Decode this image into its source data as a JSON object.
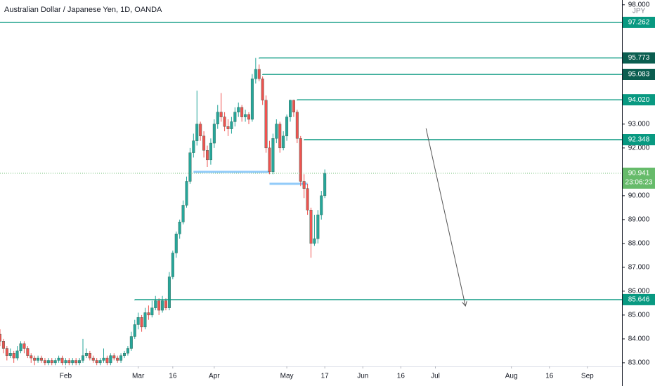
{
  "chart_data": {
    "type": "candlestick",
    "title": "Australian Dollar / Japanese Yen, 1D, OANDA",
    "currency": "JPY",
    "up_color": "#26a69a",
    "down_color": "#ef5350",
    "level_color": "#089981",
    "zone_color": "#90caf9",
    "grid": false,
    "xlim": [
      -19,
      161
    ],
    "ylim": [
      82.85,
      98.2
    ],
    "yticks": [
      {
        "value": 98,
        "label": "98.000"
      },
      {
        "value": 93,
        "label": "93.000"
      },
      {
        "value": 92,
        "label": "92.000"
      },
      {
        "value": 90,
        "label": "90.000"
      },
      {
        "value": 89,
        "label": "89.000"
      },
      {
        "value": 88,
        "label": "88.000"
      },
      {
        "value": 87,
        "label": "87.000"
      },
      {
        "value": 86,
        "label": "86.000"
      },
      {
        "value": 85,
        "label": "85.000"
      },
      {
        "value": 84,
        "label": "84.000"
      },
      {
        "value": 83,
        "label": "83.000"
      }
    ],
    "xticks": [
      {
        "value": 0,
        "label": "Feb"
      },
      {
        "value": 21,
        "label": "Mar"
      },
      {
        "value": 31,
        "label": "16"
      },
      {
        "value": 43,
        "label": "Apr"
      },
      {
        "value": 64,
        "label": "May"
      },
      {
        "value": 75,
        "label": "17"
      },
      {
        "value": 86,
        "label": "Jun"
      },
      {
        "value": 97,
        "label": "16"
      },
      {
        "value": 107,
        "label": "Jul"
      },
      {
        "value": 129,
        "label": "Aug"
      },
      {
        "value": 140,
        "label": "16"
      },
      {
        "value": 151,
        "label": "Sep"
      }
    ],
    "x": [
      -19,
      -18,
      -17,
      -16,
      -15,
      -14,
      -13,
      -12,
      -11,
      -10,
      -9,
      -8,
      -7,
      -6,
      -5,
      -4,
      -3,
      -2,
      -1,
      0,
      1,
      2,
      3,
      4,
      5,
      6,
      7,
      8,
      9,
      10,
      11,
      12,
      13,
      14,
      15,
      16,
      17,
      18,
      19,
      20,
      21,
      22,
      23,
      24,
      25,
      26,
      27,
      28,
      29,
      30,
      31,
      32,
      33,
      34,
      35,
      36,
      37,
      38,
      39,
      40,
      41,
      42,
      43,
      44,
      45,
      46,
      47,
      48,
      49,
      50,
      51,
      52,
      53,
      54,
      55,
      56,
      57,
      58,
      59,
      60,
      61,
      62,
      63,
      64,
      65,
      66,
      67,
      68,
      69,
      70,
      71,
      72,
      73,
      74,
      75
    ],
    "ohlc": [
      [
        84.2,
        84.4,
        83.7,
        83.9
      ],
      [
        83.9,
        84.0,
        83.4,
        83.6
      ],
      [
        83.6,
        83.7,
        83.1,
        83.3
      ],
      [
        83.3,
        83.6,
        83.2,
        83.4
      ],
      [
        83.4,
        83.5,
        83.0,
        83.2
      ],
      [
        83.2,
        83.7,
        83.1,
        83.5
      ],
      [
        83.5,
        83.9,
        83.4,
        83.8
      ],
      [
        83.8,
        83.9,
        83.4,
        83.6
      ],
      [
        83.6,
        83.7,
        83.2,
        83.3
      ],
      [
        83.3,
        83.4,
        83.0,
        83.2
      ],
      [
        83.2,
        83.3,
        82.9,
        83.1
      ],
      [
        83.1,
        83.3,
        83.0,
        83.2
      ],
      [
        83.2,
        83.3,
        83.0,
        83.1
      ],
      [
        83.1,
        83.2,
        82.9,
        83.0
      ],
      [
        83.0,
        83.2,
        82.9,
        83.1
      ],
      [
        83.1,
        83.2,
        82.9,
        83.0
      ],
      [
        83.0,
        83.2,
        82.9,
        83.1
      ],
      [
        83.1,
        83.3,
        83.0,
        83.2
      ],
      [
        83.2,
        83.3,
        82.9,
        83.0
      ],
      [
        83.0,
        83.2,
        82.9,
        83.1
      ],
      [
        83.1,
        83.2,
        82.9,
        83.0
      ],
      [
        83.0,
        83.2,
        82.9,
        83.1
      ],
      [
        83.1,
        83.2,
        82.9,
        83.0
      ],
      [
        83.0,
        83.2,
        82.9,
        83.1
      ],
      [
        83.1,
        84.0,
        83.0,
        83.3
      ],
      [
        83.3,
        83.6,
        83.2,
        83.4
      ],
      [
        83.4,
        83.5,
        83.1,
        83.2
      ],
      [
        83.2,
        83.3,
        83.0,
        83.1
      ],
      [
        83.1,
        83.2,
        82.9,
        83.0
      ],
      [
        83.0,
        83.2,
        82.9,
        83.1
      ],
      [
        83.1,
        83.6,
        83.0,
        83.2
      ],
      [
        83.2,
        83.3,
        82.9,
        83.0
      ],
      [
        83.0,
        83.4,
        82.9,
        83.3
      ],
      [
        83.3,
        83.4,
        83.1,
        83.2
      ],
      [
        83.2,
        83.3,
        83.0,
        83.1
      ],
      [
        83.1,
        83.4,
        83.0,
        83.3
      ],
      [
        83.3,
        83.5,
        83.2,
        83.4
      ],
      [
        83.4,
        83.7,
        83.3,
        83.6
      ],
      [
        83.6,
        84.3,
        83.5,
        84.1
      ],
      [
        84.1,
        84.8,
        84.0,
        84.6
      ],
      [
        84.6,
        85.1,
        84.4,
        84.9
      ],
      [
        84.9,
        85.0,
        84.3,
        84.5
      ],
      [
        84.5,
        85.3,
        84.4,
        85.1
      ],
      [
        85.1,
        85.4,
        84.8,
        85.0
      ],
      [
        85.0,
        85.6,
        84.9,
        85.3
      ],
      [
        85.3,
        85.8,
        85.2,
        85.6
      ],
      [
        85.6,
        85.7,
        85.0,
        85.2
      ],
      [
        85.2,
        85.8,
        85.1,
        85.6
      ],
      [
        85.6,
        85.7,
        85.2,
        85.3
      ],
      [
        85.3,
        86.8,
        85.2,
        86.6
      ],
      [
        86.6,
        87.7,
        86.5,
        87.6
      ],
      [
        87.6,
        88.5,
        87.4,
        88.4
      ],
      [
        88.4,
        89.0,
        88.2,
        88.9
      ],
      [
        88.9,
        89.8,
        88.8,
        89.6
      ],
      [
        89.6,
        90.8,
        89.5,
        90.6
      ],
      [
        90.6,
        92.0,
        90.5,
        91.8
      ],
      [
        91.8,
        92.6,
        91.6,
        92.3
      ],
      [
        92.3,
        94.4,
        92.1,
        93.0
      ],
      [
        93.0,
        93.1,
        92.3,
        92.5
      ],
      [
        92.5,
        92.7,
        91.6,
        91.9
      ],
      [
        91.9,
        92.1,
        91.2,
        91.5
      ],
      [
        91.5,
        92.4,
        91.3,
        92.2
      ],
      [
        92.2,
        93.2,
        92.0,
        93.0
      ],
      [
        93.0,
        93.8,
        92.8,
        93.5
      ],
      [
        93.5,
        94.3,
        93.1,
        93.3
      ],
      [
        93.3,
        93.5,
        92.7,
        92.9
      ],
      [
        92.9,
        93.2,
        92.5,
        92.8
      ],
      [
        92.8,
        93.3,
        92.6,
        93.1
      ],
      [
        93.1,
        93.7,
        92.9,
        93.5
      ],
      [
        93.5,
        93.9,
        93.3,
        93.7
      ],
      [
        93.7,
        93.8,
        93.1,
        93.3
      ],
      [
        93.3,
        93.6,
        93.1,
        93.4
      ],
      [
        93.4,
        93.5,
        93.0,
        93.2
      ],
      [
        93.2,
        95.1,
        93.1,
        94.9
      ],
      [
        94.9,
        95.77,
        94.7,
        95.3
      ],
      [
        95.3,
        95.5,
        94.8,
        94.9
      ],
      [
        94.9,
        95.0,
        93.8,
        94.0
      ],
      [
        94.0,
        94.2,
        91.8,
        92.0
      ],
      [
        92.0,
        92.3,
        90.9,
        91.0
      ],
      [
        91.0,
        92.6,
        90.9,
        92.4
      ],
      [
        92.4,
        93.2,
        92.2,
        93.0
      ],
      [
        93.0,
        93.1,
        91.8,
        92.0
      ],
      [
        92.0,
        92.7,
        91.9,
        92.5
      ],
      [
        92.5,
        93.4,
        92.3,
        93.3
      ],
      [
        93.3,
        94.02,
        93.1,
        94.0
      ],
      [
        94.0,
        94.02,
        93.3,
        93.5
      ],
      [
        93.5,
        93.6,
        92.2,
        92.4
      ],
      [
        92.4,
        92.5,
        90.4,
        90.6
      ],
      [
        90.6,
        90.9,
        89.9,
        90.3
      ],
      [
        90.3,
        90.5,
        89.2,
        89.4
      ],
      [
        89.4,
        89.5,
        87.4,
        88.0
      ],
      [
        88.0,
        89.2,
        87.9,
        88.2
      ],
      [
        88.2,
        89.4,
        88.0,
        89.2
      ],
      [
        89.2,
        90.2,
        89.0,
        90.0
      ],
      [
        90.0,
        91.1,
        89.9,
        90.94
      ]
    ],
    "levels": [
      {
        "value": 97.262,
        "label": "97.262",
        "from": -19,
        "color": "#089981"
      },
      {
        "value": 95.773,
        "label": "95.773",
        "from": 56,
        "color": "#0b5e50"
      },
      {
        "value": 95.083,
        "label": "95.083",
        "from": 57,
        "color": "#0b5e50"
      },
      {
        "value": 94.02,
        "label": "94.020",
        "from": 67,
        "color": "#089981"
      },
      {
        "value": 92.348,
        "label": "92.348",
        "from": 69,
        "color": "#089981"
      },
      {
        "value": 85.646,
        "label": "85.646",
        "from": 20,
        "color": "#089981"
      }
    ],
    "zones": [
      {
        "value": 91.0,
        "from": 37,
        "to": 59
      },
      {
        "value": 90.5,
        "from": 59,
        "to": 70
      }
    ],
    "arrow": {
      "from": [
        104.3,
        92.82
      ],
      "to": [
        115.7,
        85.38
      ]
    },
    "last_price": {
      "value": 90.941,
      "label": "90.941",
      "countdown": "23:06:23",
      "color": "#66bb6a"
    }
  }
}
